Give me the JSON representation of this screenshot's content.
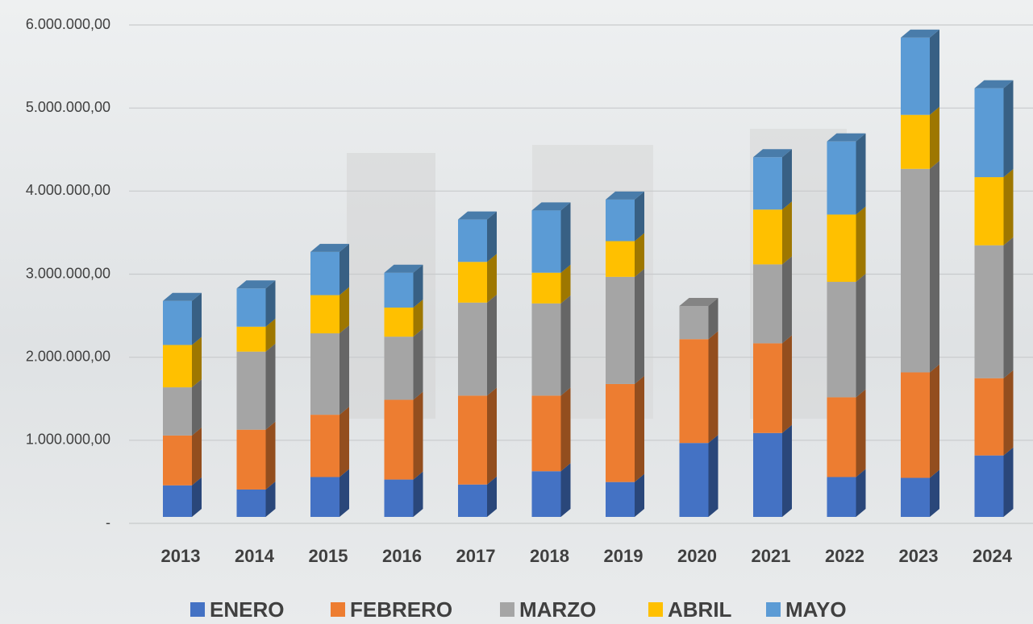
{
  "chart_data": {
    "type": "bar",
    "stacked": true,
    "categories": [
      "2013",
      "2014",
      "2015",
      "2016",
      "2017",
      "2018",
      "2019",
      "2020",
      "2021",
      "2022",
      "2023",
      "2024"
    ],
    "series": [
      {
        "name": "ENERO",
        "color": "#4472c4",
        "values": [
          380000,
          330000,
          480000,
          450000,
          390000,
          550000,
          420000,
          890000,
          1010000,
          480000,
          470000,
          740000
        ]
      },
      {
        "name": "FEBRERO",
        "color": "#ed7d31",
        "values": [
          600000,
          720000,
          750000,
          960000,
          1070000,
          910000,
          1180000,
          1250000,
          1080000,
          960000,
          1270000,
          930000
        ]
      },
      {
        "name": "MARZO",
        "color": "#a5a5a5",
        "values": [
          580000,
          940000,
          980000,
          760000,
          1120000,
          1110000,
          1290000,
          400000,
          950000,
          1390000,
          2450000,
          1600000
        ]
      },
      {
        "name": "ABRIL",
        "color": "#ffc000",
        "values": [
          510000,
          300000,
          460000,
          350000,
          490000,
          370000,
          430000,
          0,
          660000,
          810000,
          650000,
          820000
        ]
      },
      {
        "name": "MAYO",
        "color": "#5b9bd5",
        "values": [
          530000,
          460000,
          520000,
          420000,
          510000,
          750000,
          500000,
          0,
          630000,
          880000,
          930000,
          1070000
        ]
      }
    ],
    "ylim": [
      0,
      6000000
    ],
    "yticks": [
      {
        "value": 0,
        "label": "-"
      },
      {
        "value": 1000000,
        "label": "1.000.000,00"
      },
      {
        "value": 2000000,
        "label": "2.000.000,00"
      },
      {
        "value": 3000000,
        "label": "3.000.000,00"
      },
      {
        "value": 4000000,
        "label": "4.000.000,00"
      },
      {
        "value": 5000000,
        "label": "5.000.000,00"
      },
      {
        "value": 6000000,
        "label": "6.000.000,00"
      }
    ],
    "grid": true,
    "legend": "bottom"
  }
}
